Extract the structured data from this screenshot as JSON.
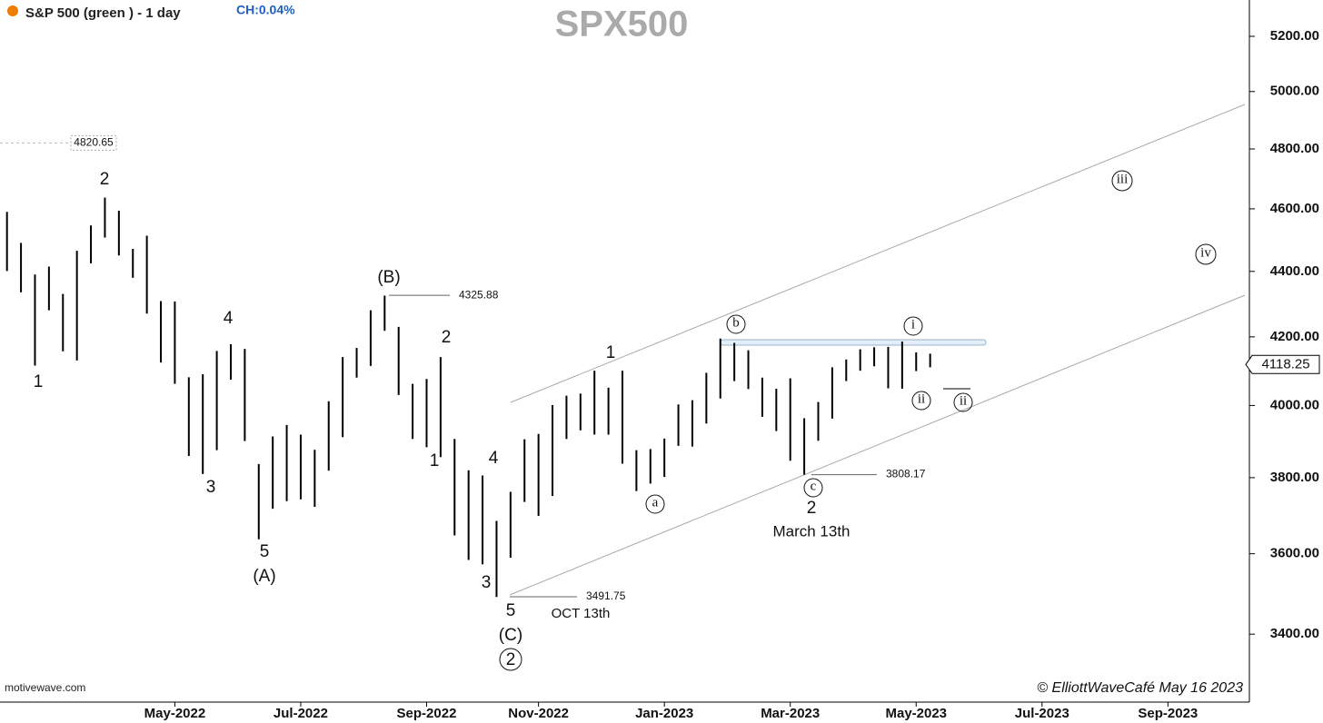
{
  "chart_data": {
    "type": "range-bar",
    "title": "S&P 500 (green ) - 1 day",
    "change": "CH:0.04%",
    "watermark": "SPX500",
    "source": "motivewave.com",
    "credit": "© ElliottWaveCafé May 16 2023",
    "color": "#000000",
    "log_scale": true,
    "ylim": [
      3246,
      5336
    ],
    "yticks": [
      {
        "value": 3400,
        "label": "3400.00"
      },
      {
        "value": 3600,
        "label": "3600.00"
      },
      {
        "value": 3800,
        "label": "3800.00"
      },
      {
        "value": 4000,
        "label": "4000.00"
      },
      {
        "value": 4200,
        "label": "4200.00"
      },
      {
        "value": 4400,
        "label": "4400.00"
      },
      {
        "value": 4600,
        "label": "4600.00"
      },
      {
        "value": 4800,
        "label": "4800.00"
      },
      {
        "value": 5000,
        "label": "5000.00"
      },
      {
        "value": 5200,
        "label": "5200.00"
      }
    ],
    "last_price": 4118.25,
    "levels": [
      4820.65,
      4325.88,
      3808.17,
      3491.75
    ],
    "categories": [
      null,
      null,
      null,
      null,
      null,
      null,
      null,
      null,
      null,
      null,
      null,
      null,
      "May-2022",
      null,
      null,
      null,
      null,
      null,
      null,
      null,
      null,
      "Jul-2022",
      null,
      null,
      null,
      null,
      null,
      null,
      null,
      null,
      "Sep-2022",
      null,
      null,
      null,
      null,
      null,
      null,
      null,
      "Nov-2022",
      null,
      null,
      null,
      null,
      null,
      null,
      null,
      null,
      "Jan-2023",
      null,
      null,
      null,
      null,
      null,
      null,
      null,
      null,
      "Mar-2023",
      null,
      null,
      null,
      null,
      null,
      null,
      null,
      null,
      "May-2023",
      null,
      null,
      null,
      null,
      null,
      null,
      null,
      null,
      "Jul-2023",
      null,
      null,
      null,
      null,
      null,
      null,
      null,
      null,
      "Sep-2023",
      null,
      null,
      null,
      null,
      null
    ],
    "high": [
      4590,
      4490,
      4390,
      4415,
      4330,
      4465,
      4546,
      4637,
      4594,
      4471,
      4513,
      4308,
      4307,
      4081,
      4090,
      4158,
      4178,
      4164,
      3837,
      3913,
      3945,
      3918,
      3876,
      4012,
      4140,
      4167,
      4280,
      4325,
      4230,
      4062,
      4076,
      4140,
      3906,
      3820,
      3806,
      3685,
      3762,
      3905,
      3920,
      4001,
      4028,
      4034,
      4100,
      4051,
      4100,
      3875,
      3878,
      3907,
      4003,
      4015,
      4094,
      4195,
      4182,
      4160,
      4080,
      4048,
      4078,
      3964,
      4010,
      4110,
      4133,
      4163,
      4169,
      4170,
      4186,
      4154,
      4150,
      null,
      null,
      null,
      null,
      null,
      null,
      null,
      null,
      null,
      null,
      null,
      null,
      null,
      null,
      null,
      null,
      null,
      null,
      null,
      null,
      null,
      null
    ],
    "low": [
      4401,
      4335,
      4115,
      4280,
      4157,
      4130,
      4425,
      4507,
      4450,
      4380,
      4270,
      4124,
      4062,
      3859,
      3810,
      3875,
      4074,
      3900,
      3637,
      3717,
      3737,
      3742,
      3722,
      3819,
      3911,
      4080,
      4114,
      4218,
      4030,
      3906,
      3883,
      3856,
      3647,
      3584,
      3573,
      3491,
      3590,
      3735,
      3698,
      3751,
      3906,
      3930,
      3918,
      3918,
      3838,
      3764,
      3784,
      3802,
      3887,
      3885,
      3949,
      4020,
      4070,
      4047,
      3968,
      3928,
      3846,
      3808,
      3901,
      3963,
      4070,
      4100,
      4113,
      4049,
      4048,
      4099,
      4110,
      null,
      null,
      null,
      null,
      null,
      null,
      null,
      null,
      null,
      null,
      null,
      null,
      null,
      null,
      null,
      null,
      null,
      null,
      null,
      null,
      null,
      null
    ],
    "annotations": [
      "2",
      "1",
      "4",
      "3",
      "5",
      "(A)",
      "(B)",
      "2",
      "1",
      "4",
      "3",
      "5",
      "(C)",
      "2",
      "1",
      "a",
      "b",
      "c",
      "2",
      "March 13th",
      "OCT 13th",
      "i",
      "ii",
      "ii",
      "iii",
      "iv"
    ]
  }
}
